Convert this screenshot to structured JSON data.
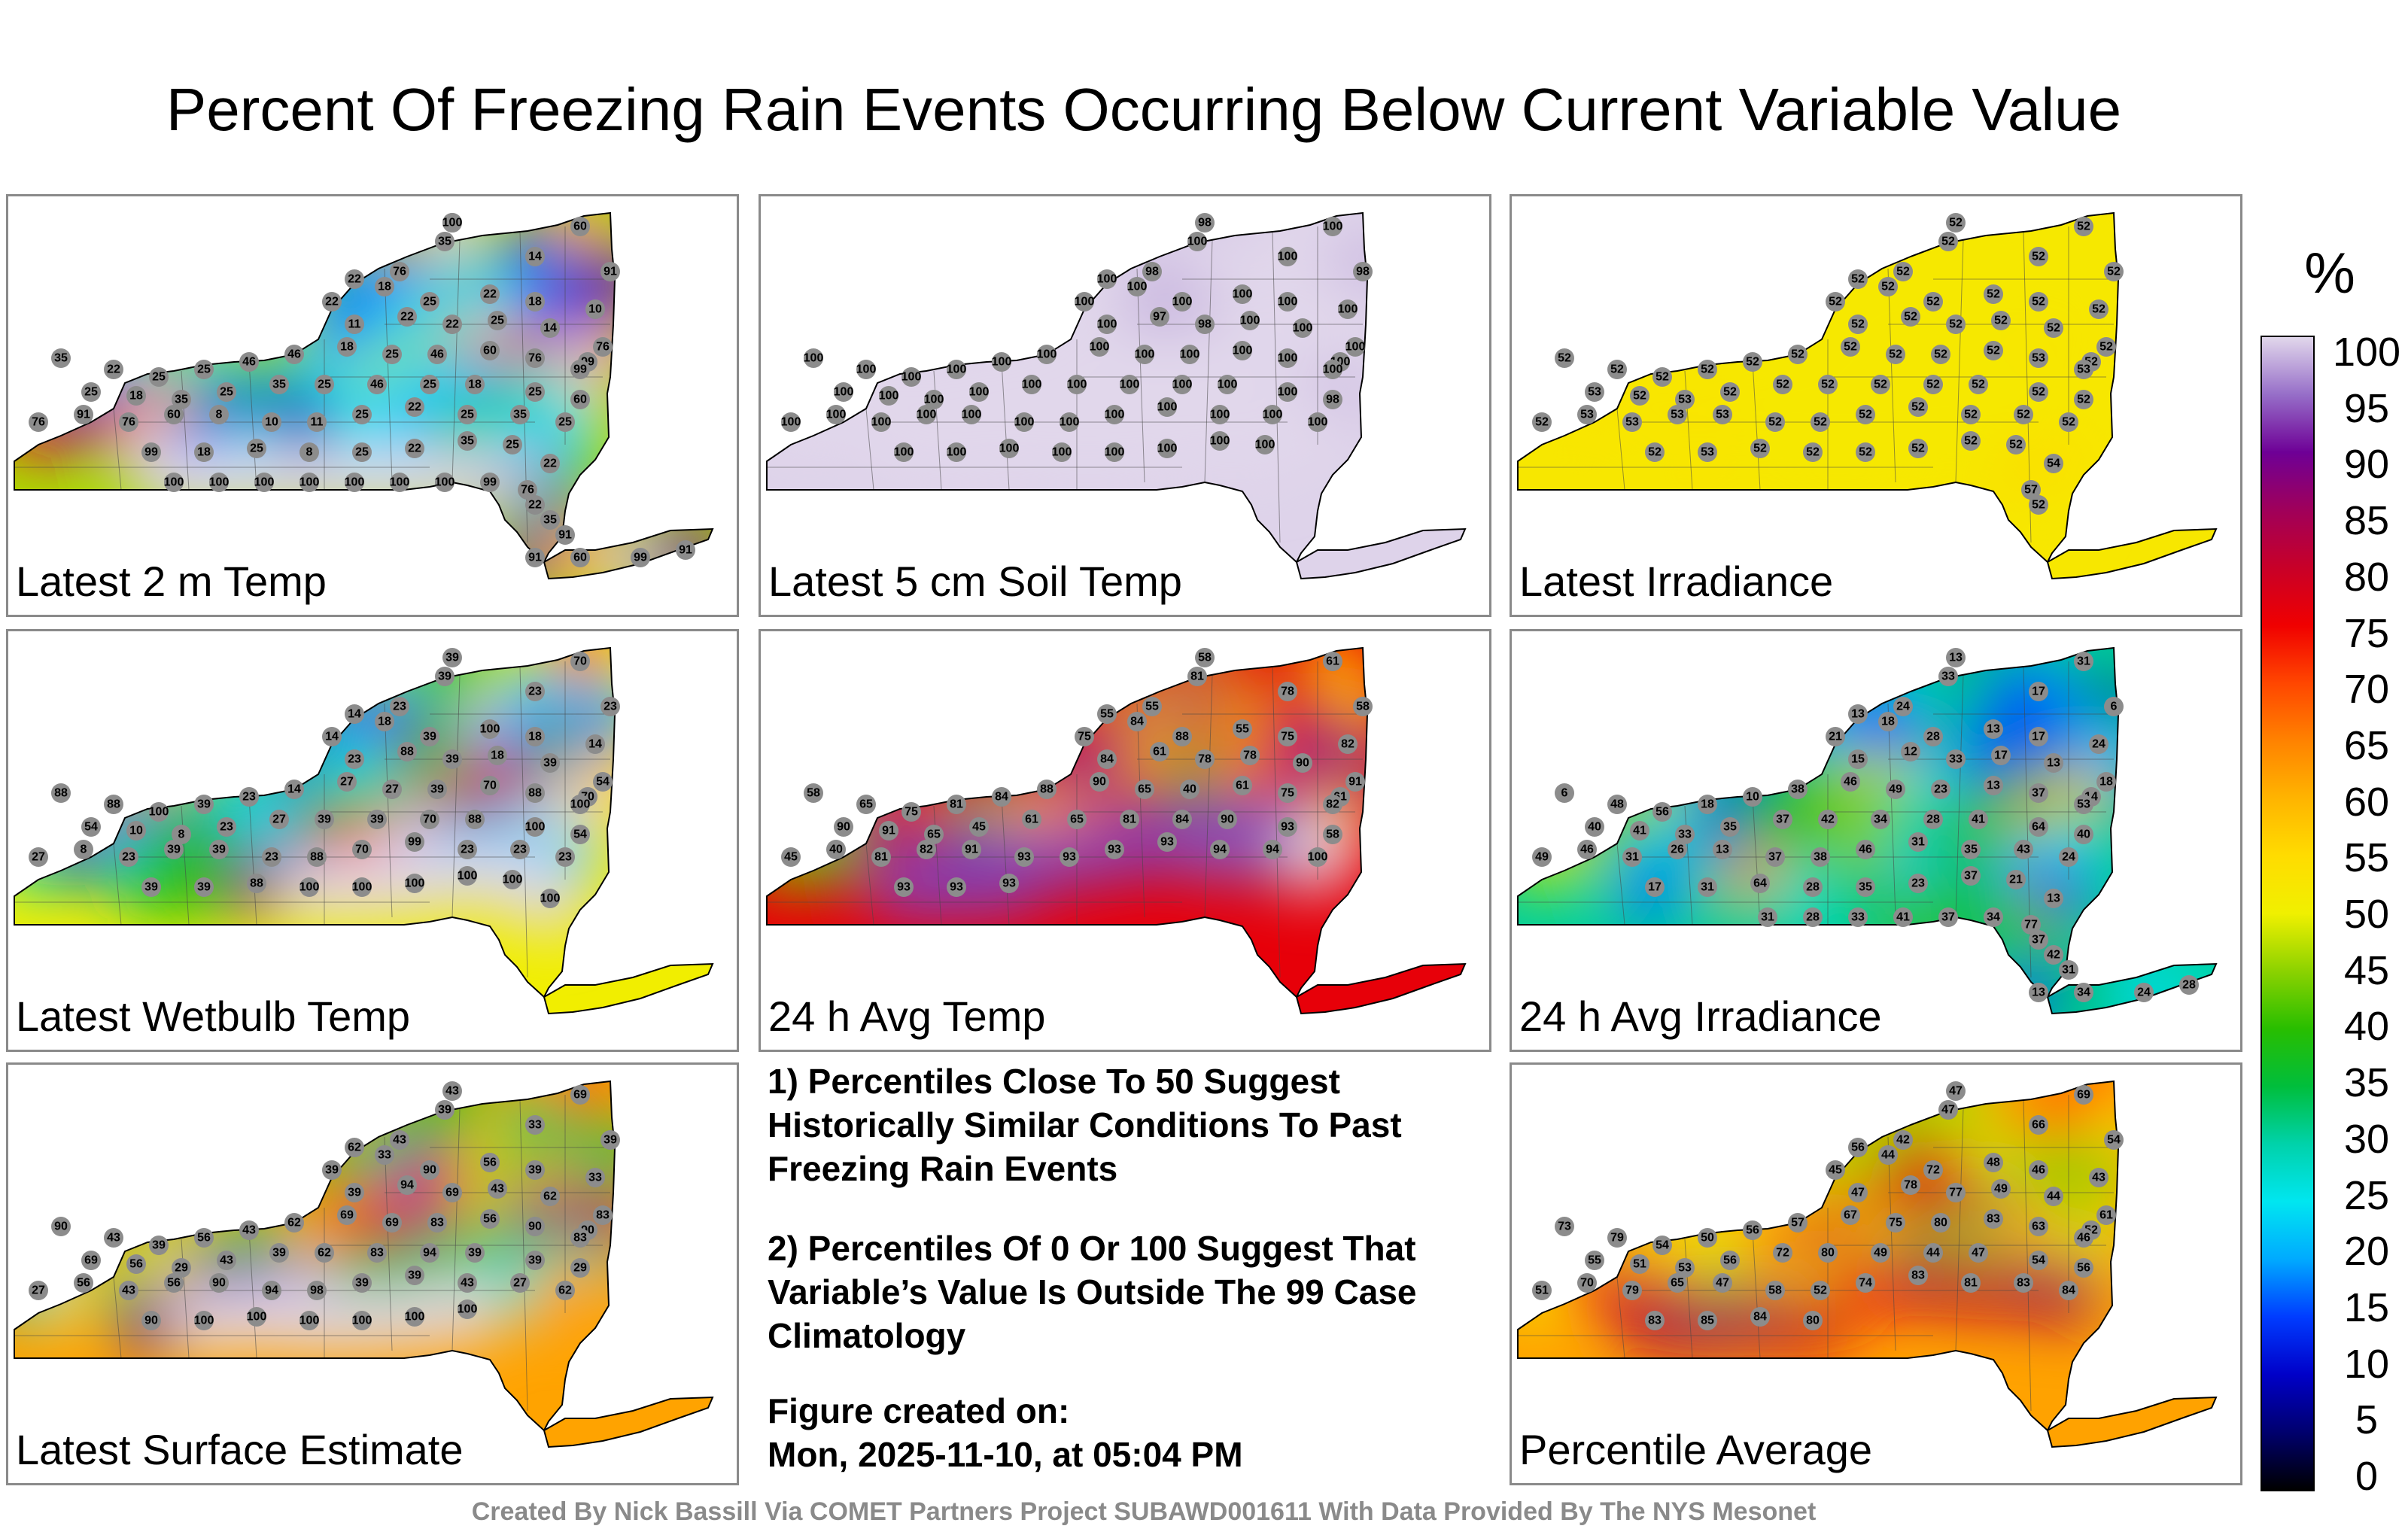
{
  "title": "Percent Of Freezing Rain Events Occurring Below Current Variable Value",
  "colorbar": {
    "unit": "%",
    "ticks": [
      "100",
      "95",
      "90",
      "85",
      "80",
      "75",
      "70",
      "65",
      "60",
      "55",
      "50",
      "45",
      "40",
      "35",
      "30",
      "25",
      "20",
      "15",
      "10",
      "5",
      "0"
    ]
  },
  "panels": [
    {
      "label": "Latest 2 m Temp",
      "stations": [
        "25",
        "60",
        "35",
        "14",
        "22",
        "76",
        "91",
        "22",
        "18",
        "25",
        "22",
        "18",
        "10",
        "11",
        "22",
        "22",
        "25",
        "14",
        "76",
        "99",
        "35",
        "22",
        "25",
        "25",
        "46",
        "46",
        "18",
        "25",
        "46",
        "60",
        "76",
        "99",
        "25",
        "18",
        "35",
        "25",
        "35",
        "25",
        "46",
        "25",
        "18",
        "25",
        "60",
        "76",
        "91",
        "76",
        "60",
        "8",
        "10",
        "11",
        "25",
        "22",
        "25",
        "35",
        "25",
        "99",
        "18",
        "25",
        "8",
        "25",
        "22",
        "35",
        "25",
        "22",
        "76",
        "22",
        "35",
        "91",
        "91",
        "60",
        "99",
        "91",
        "99",
        "100",
        "100",
        "100",
        "100",
        "100",
        "100",
        "100",
        "100"
      ],
      "mode": "temp"
    },
    {
      "label": "Latest 5 cm Soil Temp",
      "stations": [
        "98",
        "100",
        "100",
        "100",
        "100",
        "98",
        "98",
        "100",
        "100",
        "100",
        "100",
        "100",
        "100",
        "100",
        "97",
        "98",
        "100",
        "100",
        "100",
        "100",
        "100",
        "100",
        "100",
        "100",
        "100",
        "100",
        "100",
        "100",
        "100",
        "100",
        "100",
        "100",
        "100",
        "100",
        "100",
        "100",
        "100",
        "100",
        "100",
        "100",
        "100",
        "100",
        "98",
        "100",
        "100",
        "100",
        "100",
        "100",
        "100",
        "100",
        "100",
        "100",
        "100",
        "100",
        "100",
        "100",
        "100",
        "100",
        "100",
        "100",
        "100",
        "100",
        "100"
      ],
      "mode": "soil"
    },
    {
      "label": "Latest Irradiance",
      "stations": [
        "52",
        "52",
        "52",
        "52",
        "52",
        "52",
        "52",
        "52",
        "52",
        "52",
        "52",
        "52",
        "52",
        "52",
        "52",
        "52",
        "52",
        "52",
        "52",
        "52",
        "52",
        "52",
        "52",
        "52",
        "52",
        "52",
        "52",
        "52",
        "52",
        "52",
        "53",
        "53",
        "53",
        "52",
        "53",
        "52",
        "52",
        "52",
        "52",
        "52",
        "52",
        "52",
        "52",
        "52",
        "53",
        "53",
        "53",
        "53",
        "52",
        "52",
        "52",
        "52",
        "52",
        "52",
        "52",
        "52",
        "53",
        "52",
        "52",
        "52",
        "52",
        "52",
        "52",
        "54",
        "57",
        "52"
      ],
      "mode": "flat"
    },
    {
      "label": "Latest Wetbulb Temp",
      "stations": [
        "39",
        "70",
        "39",
        "23",
        "14",
        "23",
        "23",
        "14",
        "18",
        "39",
        "100",
        "18",
        "14",
        "23",
        "88",
        "39",
        "18",
        "39",
        "54",
        "70",
        "88",
        "88",
        "100",
        "39",
        "23",
        "14",
        "27",
        "27",
        "39",
        "70",
        "88",
        "100",
        "54",
        "10",
        "8",
        "23",
        "27",
        "39",
        "39",
        "70",
        "88",
        "100",
        "54",
        "27",
        "8",
        "23",
        "39",
        "39",
        "23",
        "88",
        "70",
        "99",
        "23",
        "23",
        "23",
        "39",
        "39",
        "88",
        "100",
        "100",
        "100",
        "100",
        "100",
        "100"
      ],
      "mode": "temp"
    },
    {
      "label": "24 h Avg Temp",
      "stations": [
        "58",
        "61",
        "81",
        "78",
        "55",
        "55",
        "58",
        "75",
        "84",
        "88",
        "55",
        "75",
        "82",
        "84",
        "61",
        "78",
        "78",
        "90",
        "91",
        "61",
        "58",
        "65",
        "75",
        "81",
        "84",
        "88",
        "90",
        "65",
        "40",
        "61",
        "75",
        "82",
        "90",
        "91",
        "65",
        "45",
        "61",
        "65",
        "81",
        "84",
        "90",
        "93",
        "58",
        "45",
        "40",
        "81",
        "82",
        "91",
        "93",
        "93",
        "93",
        "93",
        "94",
        "94",
        "100",
        "93",
        "93",
        "93"
      ],
      "mode": "avgtemp"
    },
    {
      "label": "24 h Avg Irradiance",
      "stations": [
        "13",
        "31",
        "33",
        "17",
        "13",
        "24",
        "6",
        "21",
        "18",
        "28",
        "13",
        "17",
        "24",
        "15",
        "12",
        "33",
        "17",
        "13",
        "18",
        "14",
        "6",
        "48",
        "56",
        "18",
        "10",
        "38",
        "46",
        "49",
        "23",
        "13",
        "37",
        "53",
        "40",
        "41",
        "33",
        "35",
        "37",
        "42",
        "34",
        "28",
        "41",
        "64",
        "40",
        "49",
        "46",
        "31",
        "26",
        "13",
        "37",
        "38",
        "46",
        "31",
        "35",
        "43",
        "24",
        "17",
        "31",
        "64",
        "28",
        "35",
        "23",
        "37",
        "21",
        "13",
        "77",
        "37",
        "42",
        "31",
        "13",
        "34",
        "24",
        "28",
        "34",
        "37",
        "41",
        "33",
        "28",
        "31"
      ],
      "mode": "irr"
    },
    {
      "label": "Latest Surface Estimate",
      "stations": [
        "43",
        "69",
        "39",
        "33",
        "62",
        "43",
        "39",
        "39",
        "33",
        "90",
        "56",
        "39",
        "33",
        "39",
        "94",
        "69",
        "43",
        "62",
        "83",
        "90",
        "90",
        "43",
        "39",
        "56",
        "43",
        "62",
        "69",
        "69",
        "83",
        "56",
        "90",
        "83",
        "69",
        "56",
        "29",
        "43",
        "39",
        "62",
        "83",
        "94",
        "39",
        "39",
        "29",
        "27",
        "56",
        "43",
        "56",
        "90",
        "94",
        "98",
        "39",
        "39",
        "43",
        "27",
        "62",
        "90",
        "100",
        "100",
        "100",
        "100",
        "100",
        "100"
      ],
      "mode": "temp"
    },
    {
      "label": "Percentile Average",
      "stations": [
        "47",
        "69",
        "47",
        "66",
        "56",
        "42",
        "54",
        "45",
        "44",
        "72",
        "48",
        "46",
        "43",
        "47",
        "78",
        "77",
        "49",
        "44",
        "61",
        "52",
        "73",
        "79",
        "54",
        "50",
        "56",
        "57",
        "67",
        "75",
        "80",
        "83",
        "63",
        "46",
        "55",
        "51",
        "53",
        "56",
        "72",
        "80",
        "49",
        "44",
        "47",
        "54",
        "56",
        "51",
        "70",
        "79",
        "65",
        "47",
        "58",
        "52",
        "74",
        "83",
        "81",
        "83",
        "84",
        "83",
        "85",
        "84",
        "80"
      ],
      "mode": "avg"
    }
  ],
  "notes": [
    "1) Percentiles Close To 50 Suggest Historically Similar Conditions To Past Freezing Rain Events",
    "2) Percentiles Of 0 Or 100 Suggest That Variable’s Value Is Outside The 99 Case Climatology"
  ],
  "created": {
    "line1": "Figure created on:",
    "line2": "Mon, 2025-11-10, at 05:04 PM"
  },
  "footer": "Created By Nick Bassill Via COMET Partners Project SUBAWD001611 With Data Provided By The NYS Mesonet"
}
